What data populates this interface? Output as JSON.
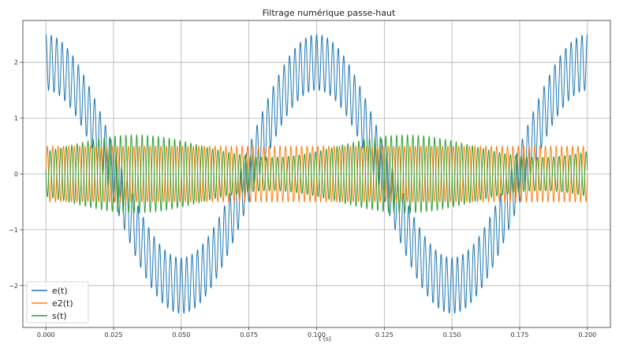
{
  "chart_data": {
    "type": "line",
    "title": "Filtrage numérique passe-haut",
    "xlabel": "t (s)",
    "ylabel": "",
    "xlim": [
      -0.0085,
      0.2085
    ],
    "ylim": [
      -2.75,
      2.75
    ],
    "x_ticks": [
      0.0,
      0.025,
      0.05,
      0.075,
      0.1,
      0.125,
      0.15,
      0.175,
      0.2
    ],
    "x_tick_labels": [
      "0.000",
      "0.025",
      "0.050",
      "0.075",
      "0.100",
      "0.125",
      "0.150",
      "0.175",
      "0.200"
    ],
    "y_ticks": [
      -2,
      -1,
      0,
      1,
      2
    ],
    "y_tick_labels": [
      "−2",
      "−1",
      "0",
      "1",
      "2"
    ],
    "grid": true,
    "legend_position": "lower-left",
    "series": [
      {
        "name": "e(t)",
        "color": "#1f77b4",
        "model": "2*cos(2*pi*10*t) + 0.5*cos(2*pi*500*t)",
        "low_amplitude": 2.0,
        "low_frequency_hz": 10,
        "high_amplitude": 0.5,
        "high_frequency_hz": 500,
        "t_start": 0.0,
        "t_end": 0.2
      },
      {
        "name": "e2(t)",
        "color": "#ff7f0e",
        "model": "0.5*sin(2*pi*500*t)",
        "amplitude": 0.5,
        "frequency_hz": 500,
        "t_start": 0.0,
        "t_end": 0.2
      },
      {
        "name": "s(t)",
        "color": "#2ca02c",
        "model": "(0.5 + 0.2*sin(2*pi*10*t - 0.5)) * cos(2*pi*500*t + 1.4)",
        "base_amplitude": 0.5,
        "envelope_variation": 0.2,
        "frequency_hz": 500,
        "t_start": 0.0,
        "t_end": 0.2
      }
    ]
  }
}
